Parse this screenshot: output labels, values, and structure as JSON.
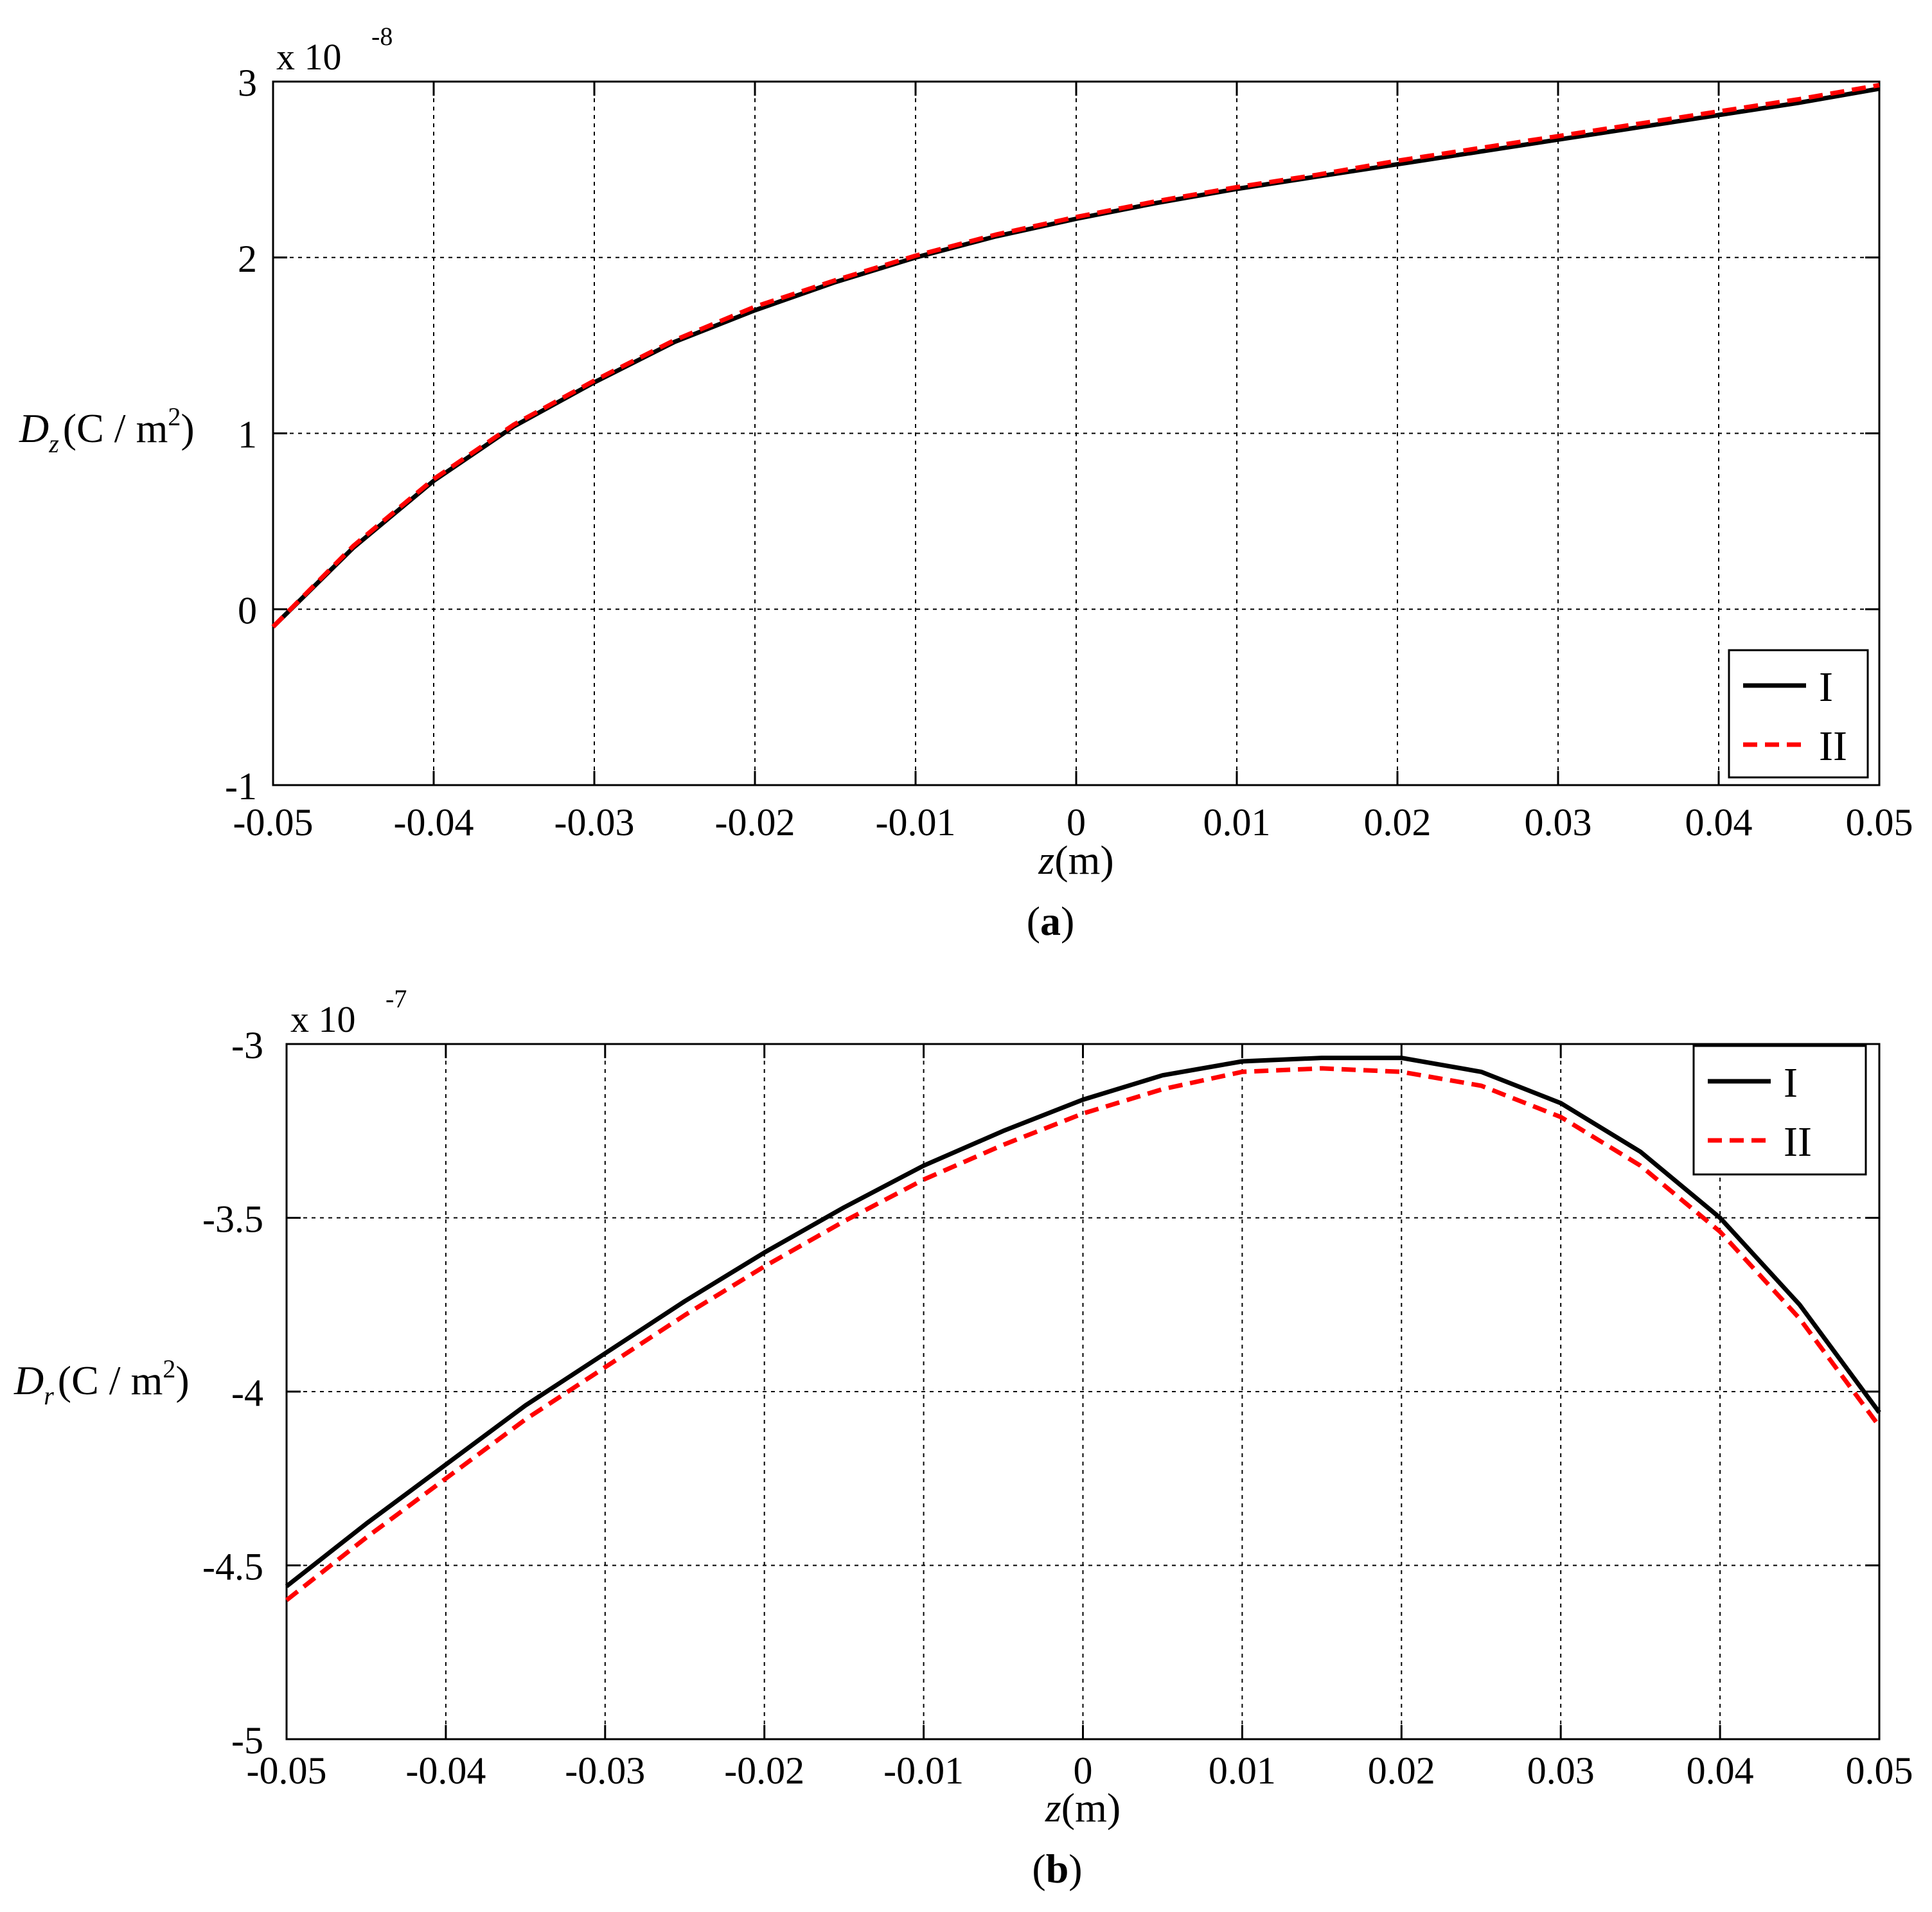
{
  "chart_data": [
    {
      "type": "line",
      "panel_label": "a",
      "xlabel": "z(m)",
      "ylabel": "Dz(C / m2)",
      "ylabel_parts": {
        "symbol": "D",
        "subscript": "z",
        "unit_open": "(C / m",
        "unit_sup": "2",
        "unit_close": ")"
      },
      "xlabel_parts": {
        "var": "z",
        "unit": "(m)"
      },
      "multiplier_text": "x 10",
      "multiplier_exp": "-8",
      "xlim": [
        -0.05,
        0.05
      ],
      "ylim": [
        -1,
        3
      ],
      "x_ticks": [
        -0.05,
        -0.04,
        -0.03,
        -0.02,
        -0.01,
        0,
        0.01,
        0.02,
        0.03,
        0.04,
        0.05
      ],
      "x_tick_labels": [
        "-0.05",
        "-0.04",
        "-0.03",
        "-0.02",
        "-0.01",
        "0",
        "0.01",
        "0.02",
        "0.03",
        "0.04",
        "0.05"
      ],
      "y_ticks": [
        -1,
        0,
        1,
        2,
        3
      ],
      "y_tick_labels": [
        "-1",
        "0",
        "1",
        "2",
        "3"
      ],
      "grid": true,
      "legend_position": "bottom-right",
      "x": [
        -0.05,
        -0.045,
        -0.04,
        -0.035,
        -0.03,
        -0.025,
        -0.02,
        -0.015,
        -0.01,
        -0.005,
        0,
        0.005,
        0.01,
        0.015,
        0.02,
        0.025,
        0.03,
        0.035,
        0.04,
        0.045,
        0.05
      ],
      "series": [
        {
          "name": "I",
          "color": "#000000",
          "dash": "solid",
          "values": [
            -0.1,
            0.35,
            0.73,
            1.04,
            1.29,
            1.52,
            1.7,
            1.86,
            2.0,
            2.12,
            2.22,
            2.31,
            2.39,
            2.46,
            2.53,
            2.6,
            2.67,
            2.74,
            2.81,
            2.88,
            2.96
          ]
        },
        {
          "name": "II",
          "color": "#ff0000",
          "dash": "dashed",
          "values": [
            -0.1,
            0.36,
            0.74,
            1.05,
            1.3,
            1.53,
            1.72,
            1.87,
            2.01,
            2.13,
            2.23,
            2.32,
            2.4,
            2.47,
            2.55,
            2.62,
            2.69,
            2.76,
            2.83,
            2.9,
            2.98
          ]
        }
      ]
    },
    {
      "type": "line",
      "panel_label": "b",
      "xlabel": "z(m)",
      "ylabel": "Dr(C / m2)",
      "ylabel_parts": {
        "symbol": "D",
        "subscript": "r",
        "unit_open": "(C / m",
        "unit_sup": "2",
        "unit_close": ")"
      },
      "xlabel_parts": {
        "var": "z",
        "unit": "(m)"
      },
      "multiplier_text": "x 10",
      "multiplier_exp": "-7",
      "xlim": [
        -0.05,
        0.05
      ],
      "ylim": [
        -5,
        -3
      ],
      "x_ticks": [
        -0.05,
        -0.04,
        -0.03,
        -0.02,
        -0.01,
        0,
        0.01,
        0.02,
        0.03,
        0.04,
        0.05
      ],
      "x_tick_labels": [
        "-0.05",
        "-0.04",
        "-0.03",
        "-0.02",
        "-0.01",
        "0",
        "0.01",
        "0.02",
        "0.03",
        "0.04",
        "0.05"
      ],
      "y_ticks": [
        -5,
        -4.5,
        -4,
        -3.5,
        -3
      ],
      "y_tick_labels": [
        "-5",
        "-4.5",
        "-4",
        "-3.5",
        "-3"
      ],
      "grid": true,
      "legend_position": "top-right",
      "x": [
        -0.05,
        -0.045,
        -0.04,
        -0.035,
        -0.03,
        -0.025,
        -0.02,
        -0.015,
        -0.01,
        -0.005,
        0,
        0.005,
        0.01,
        0.015,
        0.02,
        0.025,
        0.03,
        0.035,
        0.04,
        0.045,
        0.05
      ],
      "series": [
        {
          "name": "I",
          "color": "#000000",
          "dash": "solid",
          "values": [
            -4.56,
            -4.38,
            -4.21,
            -4.04,
            -3.89,
            -3.74,
            -3.6,
            -3.47,
            -3.35,
            -3.25,
            -3.16,
            -3.09,
            -3.05,
            -3.04,
            -3.04,
            -3.08,
            -3.17,
            -3.31,
            -3.5,
            -3.75,
            -4.06
          ]
        },
        {
          "name": "II",
          "color": "#ff0000",
          "dash": "dashed",
          "values": [
            -4.6,
            -4.42,
            -4.25,
            -4.08,
            -3.93,
            -3.78,
            -3.64,
            -3.51,
            -3.39,
            -3.29,
            -3.2,
            -3.13,
            -3.08,
            -3.07,
            -3.08,
            -3.12,
            -3.21,
            -3.35,
            -3.54,
            -3.79,
            -4.1
          ]
        }
      ]
    }
  ]
}
